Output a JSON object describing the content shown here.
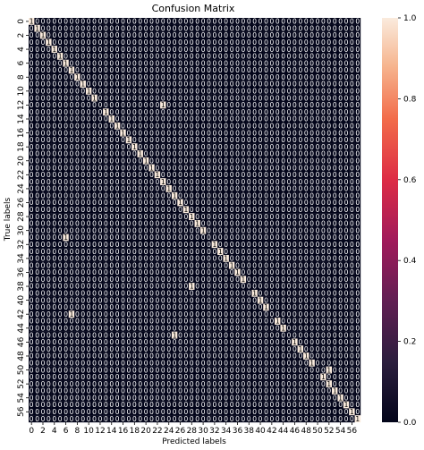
{
  "chart_data": {
    "type": "heatmap",
    "title": "Confusion Matrix",
    "xlabel": "Predicted labels",
    "ylabel": "True labels",
    "n_classes": 58,
    "matrix_note": "diagonal value 1 except rows listed in off_diagonal_rows; all other cells 0",
    "off_diagonal_rows": {
      "12": 23,
      "31": 6,
      "38": 28,
      "42": 7,
      "45": 25,
      "50": 52
    },
    "tick_labels": [
      "0",
      "2",
      "4",
      "6",
      "8",
      "10",
      "12",
      "14",
      "16",
      "18",
      "20",
      "22",
      "24",
      "26",
      "28",
      "30",
      "32",
      "34",
      "36",
      "38",
      "40",
      "42",
      "44",
      "46",
      "48",
      "50",
      "52",
      "54",
      "56"
    ],
    "colorbar": {
      "range": [
        0,
        1
      ],
      "ticks": [
        "0.0",
        "0.2",
        "0.4",
        "0.6",
        "0.8",
        "1.0"
      ]
    },
    "colors": {
      "low": "#03051a",
      "high": "#faebdd"
    }
  }
}
